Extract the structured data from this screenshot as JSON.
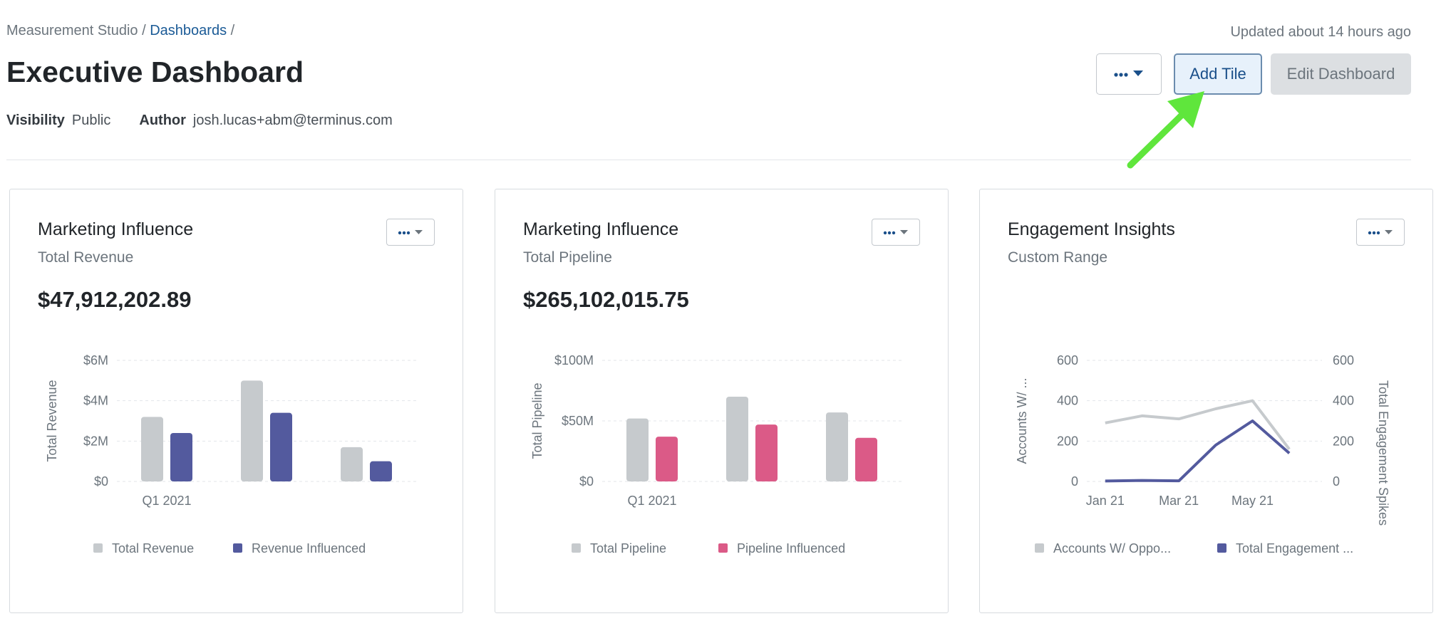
{
  "breadcrumb": {
    "root": "Measurement Studio",
    "sep1": "/",
    "link": "Dashboards",
    "sep2": "/"
  },
  "page": {
    "title": "Executive Dashboard",
    "updated": "Updated about 14 hours ago"
  },
  "meta": {
    "visibility_label": "Visibility",
    "visibility_value": "Public",
    "author_label": "Author",
    "author_value": "josh.lucas+abm@terminus.com"
  },
  "toolbar": {
    "more_icon": "ellipsis-chevron-icon",
    "add_tile_label": "Add Tile",
    "edit_label": "Edit Dashboard"
  },
  "colors": {
    "gray": "#c6cacd",
    "indigo": "#535a9e",
    "pink": "#db5a87",
    "annotation_arrow": "#5fe63c"
  },
  "cards": [
    {
      "title": "Marketing Influence",
      "subtitle": "Total Revenue",
      "value": "$47,912,202.89",
      "chart_data": {
        "type": "bar",
        "categories": [
          "Q1 2021",
          "",
          ""
        ],
        "series": [
          {
            "name": "Total Revenue",
            "values": [
              3.2,
              5.0,
              1.7
            ],
            "color": "#c6cacd"
          },
          {
            "name": "Revenue Influenced",
            "values": [
              2.4,
              3.4,
              1.0
            ],
            "color": "#535a9e"
          }
        ],
        "ylabel": "Total Revenue",
        "ylim": [
          0,
          6
        ],
        "yticks": [
          {
            "v": 0,
            "label": "$0"
          },
          {
            "v": 2,
            "label": "$2M"
          },
          {
            "v": 4,
            "label": "$4M"
          },
          {
            "v": 6,
            "label": "$6M"
          }
        ],
        "legend": "bottom"
      }
    },
    {
      "title": "Marketing Influence",
      "subtitle": "Total Pipeline",
      "value": "$265,102,015.75",
      "chart_data": {
        "type": "bar",
        "categories": [
          "Q1 2021",
          "",
          ""
        ],
        "series": [
          {
            "name": "Total Pipeline",
            "values": [
              52,
              70,
              57
            ],
            "color": "#c6cacd"
          },
          {
            "name": "Pipeline Influenced",
            "values": [
              37,
              47,
              36
            ],
            "color": "#db5a87"
          }
        ],
        "ylabel": "Total Pipeline",
        "ylim": [
          0,
          100
        ],
        "yticks": [
          {
            "v": 0,
            "label": "$0"
          },
          {
            "v": 50,
            "label": "$50M"
          },
          {
            "v": 100,
            "label": "$100M"
          }
        ],
        "legend": "bottom"
      }
    },
    {
      "title": "Engagement Insights",
      "subtitle": "Custom Range",
      "value": "",
      "chart_data": {
        "type": "line",
        "x": [
          "Jan 21",
          "Feb 21",
          "Mar 21",
          "Apr 21",
          "May 21",
          "Jun 21"
        ],
        "xtick_labels": [
          "Jan 21",
          "",
          "Mar 21",
          "",
          "May 21",
          ""
        ],
        "series": [
          {
            "name": "Accounts W/ Oppo...",
            "values": [
              290,
              325,
              310,
              360,
              400,
              160
            ],
            "color": "#c6cacd"
          },
          {
            "name": "Total Engagement ...",
            "values": [
              2,
              5,
              3,
              180,
              300,
              140
            ],
            "color": "#535a9e"
          }
        ],
        "ylabel": "Accounts W/ ...",
        "y2label": "Total Engagement Spikes",
        "ylim": [
          0,
          600
        ],
        "yticks": [
          {
            "v": 0,
            "label": "0"
          },
          {
            "v": 200,
            "label": "200"
          },
          {
            "v": 400,
            "label": "400"
          },
          {
            "v": 600,
            "label": "600"
          }
        ],
        "legend": "bottom"
      }
    }
  ]
}
